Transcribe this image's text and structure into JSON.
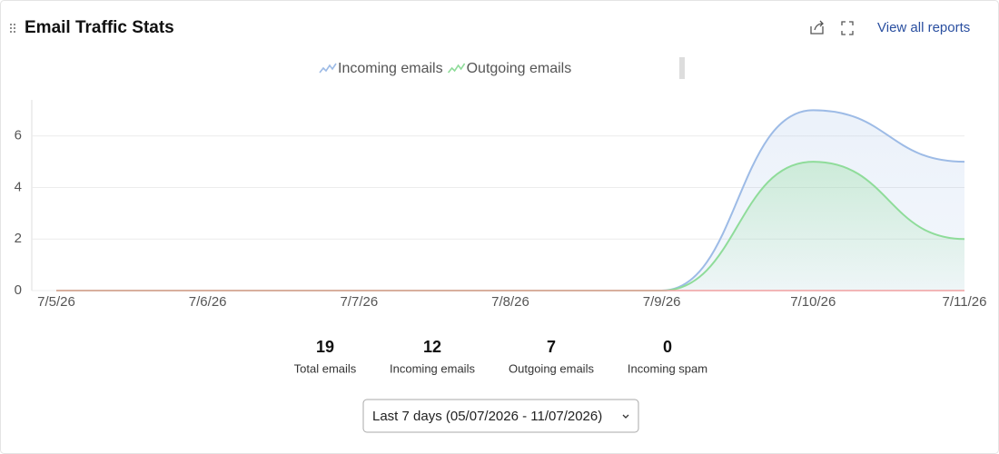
{
  "header": {
    "title": "Email Traffic Stats",
    "link": "View all reports"
  },
  "chart_data": {
    "type": "area",
    "categories": [
      "7/5/26",
      "7/6/26",
      "7/7/26",
      "7/8/26",
      "7/9/26",
      "7/10/26",
      "7/11/26"
    ],
    "series": [
      {
        "name": "Incoming emails",
        "color": "#9dbbe6",
        "values": [
          0,
          0,
          0,
          0,
          0,
          7,
          5
        ]
      },
      {
        "name": "Outgoing emails",
        "color": "#8fdc9a",
        "values": [
          0,
          0,
          0,
          0,
          0,
          5,
          2
        ]
      }
    ],
    "ylim": [
      0,
      7.4
    ],
    "yticks": [
      0,
      2,
      4,
      6
    ],
    "grid": true,
    "legend": "top"
  },
  "stats": [
    {
      "value": 19,
      "label": "Total emails"
    },
    {
      "value": 12,
      "label": "Incoming emails"
    },
    {
      "value": 7,
      "label": "Outgoing emails"
    },
    {
      "value": 0,
      "label": "Incoming spam"
    }
  ],
  "date_range": "Last 7 days (05/07/2026 - 11/07/2026)"
}
